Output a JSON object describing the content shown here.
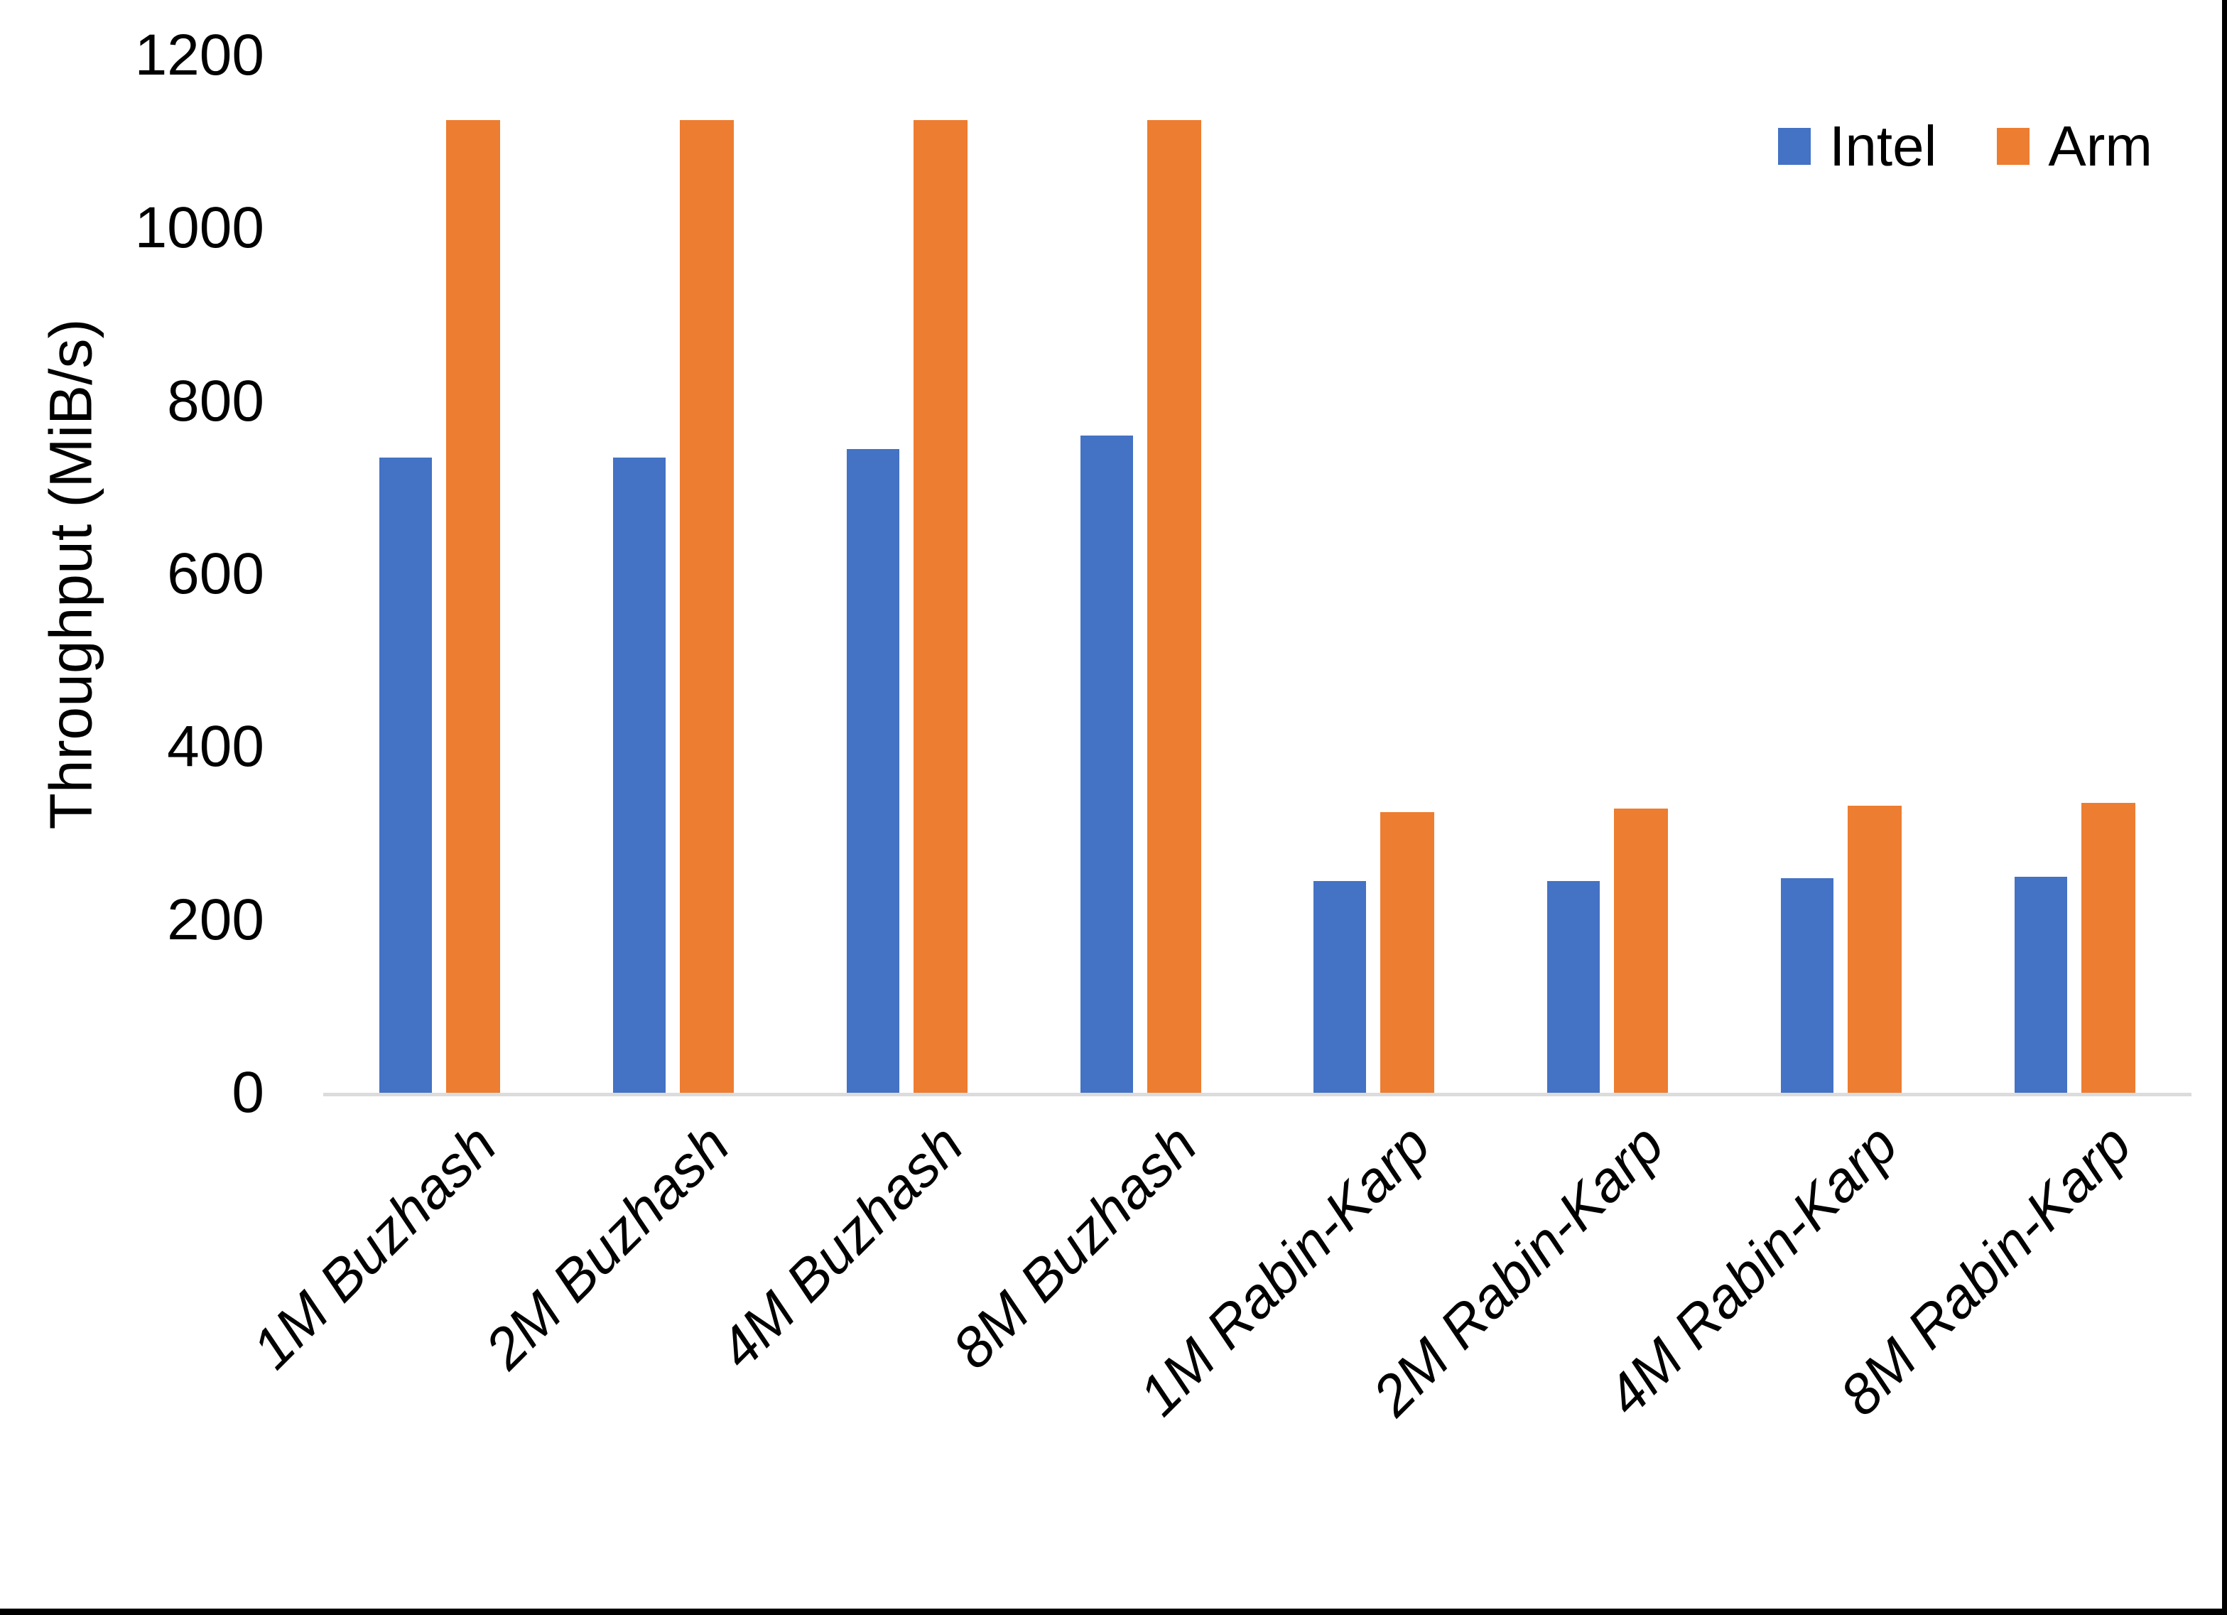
{
  "chart_data": {
    "type": "bar",
    "title": "",
    "xlabel": "",
    "ylabel": "Throughput (MiB/s)",
    "categories": [
      "1M Buzhash",
      "2M Buzhash",
      "4M Buzhash",
      "8M Buzhash",
      "1M Rabin-Karp",
      "2M Rabin-Karp",
      "4M Rabin-Karp",
      "8M Rabin-Karp"
    ],
    "series": [
      {
        "name": "Intel",
        "color": "#4472C4",
        "values": [
          735,
          735,
          745,
          760,
          245,
          245,
          248,
          250
        ]
      },
      {
        "name": "Arm",
        "color": "#ED7D31",
        "values": [
          1125,
          1125,
          1125,
          1125,
          325,
          329,
          332,
          335
        ]
      }
    ],
    "ylim": [
      0,
      1200
    ],
    "yticks": [
      0,
      200,
      400,
      600,
      800,
      1000,
      1200
    ],
    "grid": false,
    "legend_position": "top-right",
    "axis_line_color": "#DCDCDC",
    "window_border_color": "#000000"
  }
}
